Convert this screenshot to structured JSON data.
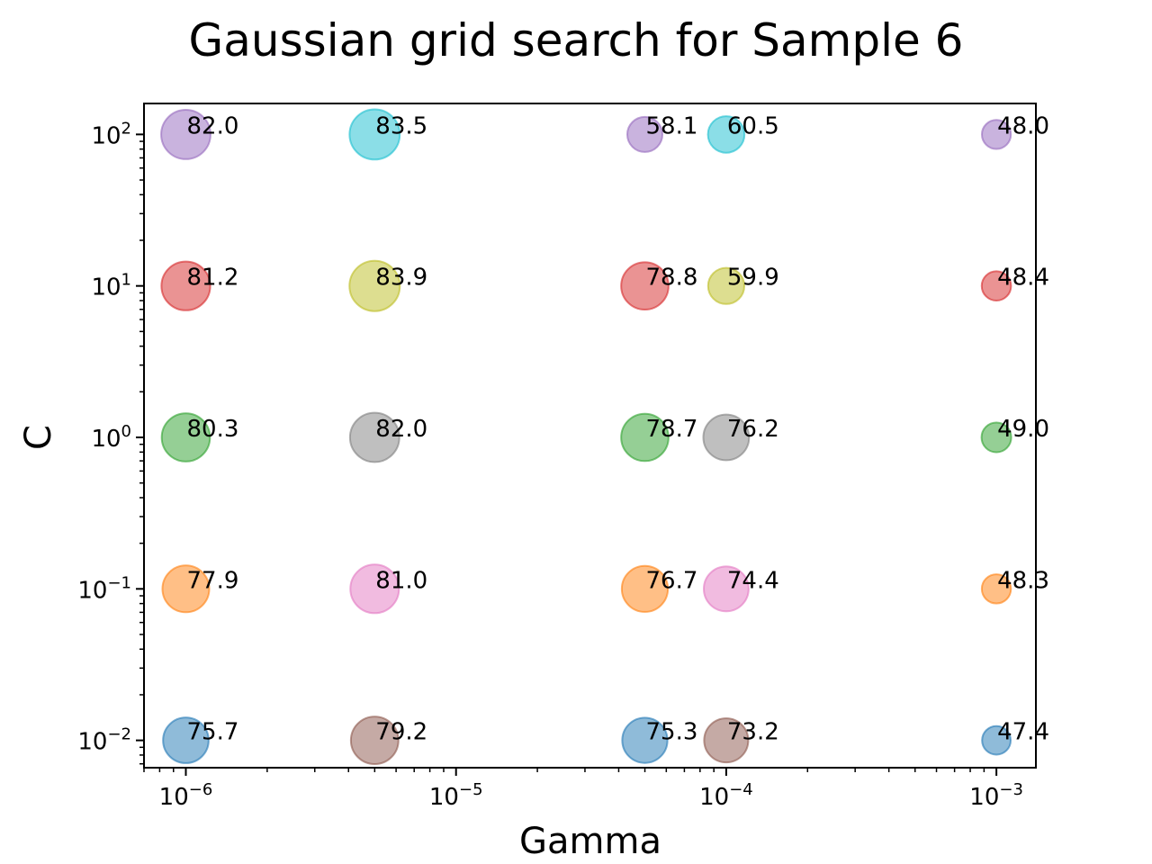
{
  "chart_data": {
    "type": "scatter",
    "title": "Gaussian grid search for Sample 6",
    "xlabel": "Gamma",
    "ylabel": "C",
    "xscale": "log",
    "yscale": "log",
    "xlim": [
      7e-07,
      0.0014
    ],
    "ylim": [
      0.0066,
      160
    ],
    "grid": false,
    "x_ticks": [
      {
        "value": 1e-06,
        "base": "10",
        "exp": "−6"
      },
      {
        "value": 1e-05,
        "base": "10",
        "exp": "−5"
      },
      {
        "value": 0.0001,
        "base": "10",
        "exp": "−4"
      },
      {
        "value": 0.001,
        "base": "10",
        "exp": "−3"
      }
    ],
    "y_ticks": [
      {
        "value": 0.01,
        "base": "10",
        "exp": "−2"
      },
      {
        "value": 0.1,
        "base": "10",
        "exp": "−1"
      },
      {
        "value": 1,
        "base": "10",
        "exp": "0"
      },
      {
        "value": 10,
        "base": "10",
        "exp": "1"
      },
      {
        "value": 100,
        "base": "10",
        "exp": "2"
      }
    ],
    "points": [
      {
        "gamma": 1e-06,
        "C": 0.01,
        "accuracy": 75.7,
        "label": "75.7",
        "color": "#1f77b4"
      },
      {
        "gamma": 1e-06,
        "C": 0.1,
        "accuracy": 77.9,
        "label": "77.9",
        "color": "#ff7f0e"
      },
      {
        "gamma": 1e-06,
        "C": 1,
        "accuracy": 80.3,
        "label": "80.3",
        "color": "#2ca02c"
      },
      {
        "gamma": 1e-06,
        "C": 10,
        "accuracy": 81.2,
        "label": "81.2",
        "color": "#d62728"
      },
      {
        "gamma": 1e-06,
        "C": 100,
        "accuracy": 82.0,
        "label": "82.0",
        "color": "#9467bd"
      },
      {
        "gamma": 5e-06,
        "C": 0.01,
        "accuracy": 79.2,
        "label": "79.2",
        "color": "#8c564b"
      },
      {
        "gamma": 5e-06,
        "C": 0.1,
        "accuracy": 81.0,
        "label": "81.0",
        "color": "#e377c2"
      },
      {
        "gamma": 5e-06,
        "C": 1,
        "accuracy": 82.0,
        "label": "82.0",
        "color": "#7f7f7f"
      },
      {
        "gamma": 5e-06,
        "C": 10,
        "accuracy": 83.9,
        "label": "83.9",
        "color": "#bcbd22"
      },
      {
        "gamma": 5e-06,
        "C": 100,
        "accuracy": 83.5,
        "label": "83.5",
        "color": "#17becf"
      },
      {
        "gamma": 5e-05,
        "C": 0.01,
        "accuracy": 75.3,
        "label": "75.3",
        "color": "#1f77b4"
      },
      {
        "gamma": 5e-05,
        "C": 0.1,
        "accuracy": 76.7,
        "label": "76.7",
        "color": "#ff7f0e"
      },
      {
        "gamma": 5e-05,
        "C": 1,
        "accuracy": 78.7,
        "label": "78.7",
        "color": "#2ca02c"
      },
      {
        "gamma": 5e-05,
        "C": 10,
        "accuracy": 78.8,
        "label": "78.8",
        "color": "#d62728"
      },
      {
        "gamma": 5e-05,
        "C": 100,
        "accuracy": 58.1,
        "label": "58.1",
        "color": "#9467bd"
      },
      {
        "gamma": 0.0001,
        "C": 0.01,
        "accuracy": 73.2,
        "label": "73.2",
        "color": "#8c564b"
      },
      {
        "gamma": 0.0001,
        "C": 0.1,
        "accuracy": 74.4,
        "label": "74.4",
        "color": "#e377c2"
      },
      {
        "gamma": 0.0001,
        "C": 1,
        "accuracy": 76.2,
        "label": "76.2",
        "color": "#7f7f7f"
      },
      {
        "gamma": 0.0001,
        "C": 10,
        "accuracy": 59.9,
        "label": "59.9",
        "color": "#bcbd22"
      },
      {
        "gamma": 0.0001,
        "C": 100,
        "accuracy": 60.5,
        "label": "60.5",
        "color": "#17becf"
      },
      {
        "gamma": 0.001,
        "C": 0.01,
        "accuracy": 47.4,
        "label": "47.4",
        "color": "#1f77b4"
      },
      {
        "gamma": 0.001,
        "C": 0.1,
        "accuracy": 48.3,
        "label": "48.3",
        "color": "#ff7f0e"
      },
      {
        "gamma": 0.001,
        "C": 1,
        "accuracy": 49.0,
        "label": "49.0",
        "color": "#2ca02c"
      },
      {
        "gamma": 0.001,
        "C": 10,
        "accuracy": 48.4,
        "label": "48.4",
        "color": "#d62728"
      },
      {
        "gamma": 0.001,
        "C": 100,
        "accuracy": 48.0,
        "label": "48.0",
        "color": "#9467bd"
      }
    ]
  }
}
